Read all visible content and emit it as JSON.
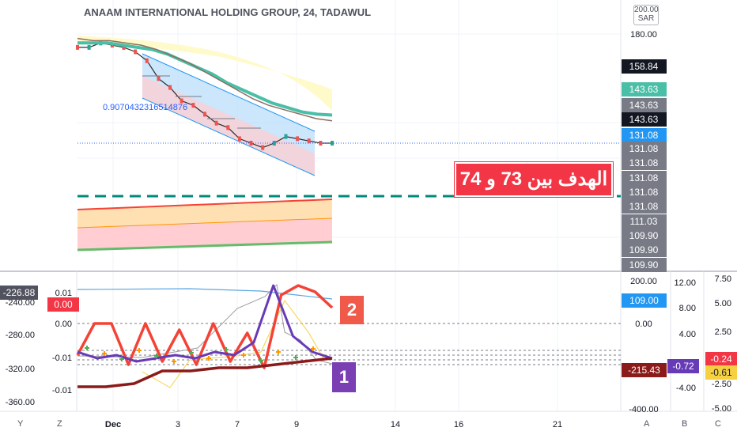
{
  "app": {
    "title": "ANAAM INTERNATIONAL HOLDING GROUP, 24, TADAWUL",
    "ratio_label": "0.9070432316514876",
    "target_note": "الهدف بين 73 و 74",
    "annotations": {
      "badge_2": "2",
      "badge_1": "1"
    },
    "axis_buttons": {
      "y": "Y",
      "z": "Z",
      "a": "A",
      "b": "B",
      "c": "C"
    },
    "sar_label": "200.00\nSAR"
  },
  "colors": {
    "bear_candle": "#ef5350",
    "bull_candle": "#26a69a",
    "channel_fill": "#bbdefb",
    "channel_low_fill": "#ffcdd2",
    "teal_ma": "#48bfa6",
    "brown_ma": "#8d6e63",
    "dashed_level": "#00897b",
    "red_line": "#f44336",
    "purple_line": "#673ab7",
    "maroon_line": "#8b1a1a",
    "blue_line": "#5ba6e0",
    "yellow_line": "#f5d142",
    "gray_line": "#9e9e9e",
    "green_marker": "#4caf50",
    "orange_marker": "#ff9800"
  },
  "chart_data": [
    {
      "type": "line",
      "panel": "price",
      "title": "ANAAM INTERNATIONAL HOLDING GROUP, 24, TADAWUL",
      "x_tick_labels": [
        "Dec",
        "3",
        "7",
        "9",
        "14",
        "16",
        "21"
      ],
      "right_axis_ticks": [
        "180.00"
      ],
      "price_tags": [
        {
          "label": "158.84",
          "color": "#131722"
        },
        {
          "label": "143.63",
          "color": "#48bfa6"
        },
        {
          "label": "143.63",
          "color": "#787b86"
        },
        {
          "label": "143.63",
          "color": "#131722"
        },
        {
          "label": "131.08",
          "color": "#2196f3"
        },
        {
          "label": "131.08",
          "color": "#787b86"
        },
        {
          "label": "131.08",
          "color": "#787b86"
        },
        {
          "label": "131.08",
          "color": "#787b86"
        },
        {
          "label": "131.08",
          "color": "#787b86"
        },
        {
          "label": "131.08",
          "color": "#787b86"
        },
        {
          "label": "111.03",
          "color": "#787b86"
        },
        {
          "label": "109.90",
          "color": "#787b86"
        },
        {
          "label": "109.90",
          "color": "#787b86"
        },
        {
          "label": "109.90",
          "color": "#787b86"
        }
      ],
      "series": [
        {
          "name": "close",
          "values": [
            174,
            174,
            176,
            175,
            174,
            172,
            168,
            160,
            156,
            150,
            148,
            144,
            140,
            138,
            133,
            131,
            129,
            131,
            134,
            133,
            132,
            131,
            131
          ]
        },
        {
          "name": "teal ma",
          "values": [
            176,
            176,
            176,
            175,
            174,
            173,
            171,
            168,
            165,
            162,
            158,
            155,
            152,
            149,
            147,
            145,
            144,
            143.6
          ]
        },
        {
          "name": "brown ma",
          "values": [
            178,
            177,
            177,
            176,
            175,
            173,
            170,
            167,
            163,
            159,
            155,
            151,
            148,
            146,
            144,
            142,
            141
          ]
        }
      ]
    },
    {
      "type": "line",
      "panel": "oscillators",
      "left_axis_ticks": [
        "-240.00",
        "-280.00",
        "-320.00",
        "-360.00"
      ],
      "left_inner_ticks": [
        "0.01",
        "0.00",
        "-0.01",
        "-0.01"
      ],
      "right_axis_ticks": [
        "200.00",
        "0.00",
        "-400.00"
      ],
      "far_right_ticks": [
        "12.00",
        "8.00",
        "4.00",
        "-4.00"
      ],
      "far_far_right_ticks": [
        "7.50",
        "5.00",
        "2.50",
        "-2.50",
        "-5.00"
      ],
      "value_tags": [
        {
          "label": "-226.88",
          "color": "#50535e"
        },
        {
          "label": "0.00",
          "color": "#f23645"
        },
        {
          "label": "109.00",
          "color": "#2196f3"
        },
        {
          "label": "-215.43",
          "color": "#8b1a1a"
        },
        {
          "label": "-0.72",
          "color": "#673ab7"
        },
        {
          "label": "-0.24",
          "color": "#f23645"
        },
        {
          "label": "-0.61",
          "color": "#f5d142"
        }
      ],
      "series": [
        {
          "name": "red",
          "values": [
            -0.01,
            0.0,
            0.0,
            -0.013,
            0.0,
            -0.012,
            -0.002,
            -0.013,
            0.0,
            -0.012,
            -0.003,
            -0.014,
            0.009,
            0.012,
            0.01,
            0.005
          ]
        },
        {
          "name": "purple",
          "values": [
            -0.009,
            -0.011,
            -0.01,
            -0.012,
            -0.011,
            -0.01,
            -0.011,
            -0.009,
            -0.01,
            -0.006,
            0.012,
            -0.004,
            -0.009,
            -0.011
          ]
        },
        {
          "name": "maroon",
          "values": [
            -0.02,
            -0.02,
            -0.019,
            -0.015,
            -0.015,
            -0.014,
            -0.014,
            -0.013,
            -0.012,
            -0.011
          ]
        }
      ]
    }
  ]
}
